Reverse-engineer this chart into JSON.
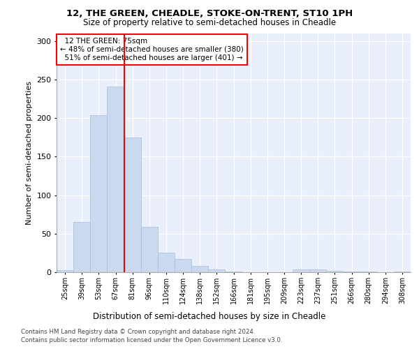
{
  "title": "12, THE GREEN, CHEADLE, STOKE-ON-TRENT, ST10 1PH",
  "subtitle": "Size of property relative to semi-detached houses in Cheadle",
  "xlabel": "Distribution of semi-detached houses by size in Cheadle",
  "ylabel": "Number of semi-detached properties",
  "property_label": "12 THE GREEN: 75sqm",
  "pct_smaller": 48,
  "pct_larger": 51,
  "n_smaller": 380,
  "n_larger": 401,
  "bin_labels": [
    "25sqm",
    "39sqm",
    "53sqm",
    "67sqm",
    "81sqm",
    "96sqm",
    "110sqm",
    "124sqm",
    "138sqm",
    "152sqm",
    "166sqm",
    "181sqm",
    "195sqm",
    "209sqm",
    "223sqm",
    "237sqm",
    "251sqm",
    "266sqm",
    "280sqm",
    "294sqm",
    "308sqm"
  ],
  "bar_heights": [
    3,
    65,
    204,
    241,
    175,
    59,
    25,
    17,
    8,
    4,
    1,
    0,
    0,
    0,
    4,
    4,
    2,
    1,
    1,
    0,
    1
  ],
  "bar_color": "#c9d9f0",
  "bar_edge_color": "#aabcd8",
  "red_line_bin": 3,
  "ylim": [
    0,
    310
  ],
  "yticks": [
    0,
    50,
    100,
    150,
    200,
    250,
    300
  ],
  "plot_bg_color": "#eaf0fb",
  "footer_line1": "Contains HM Land Registry data © Crown copyright and database right 2024.",
  "footer_line2": "Contains public sector information licensed under the Open Government Licence v3.0."
}
